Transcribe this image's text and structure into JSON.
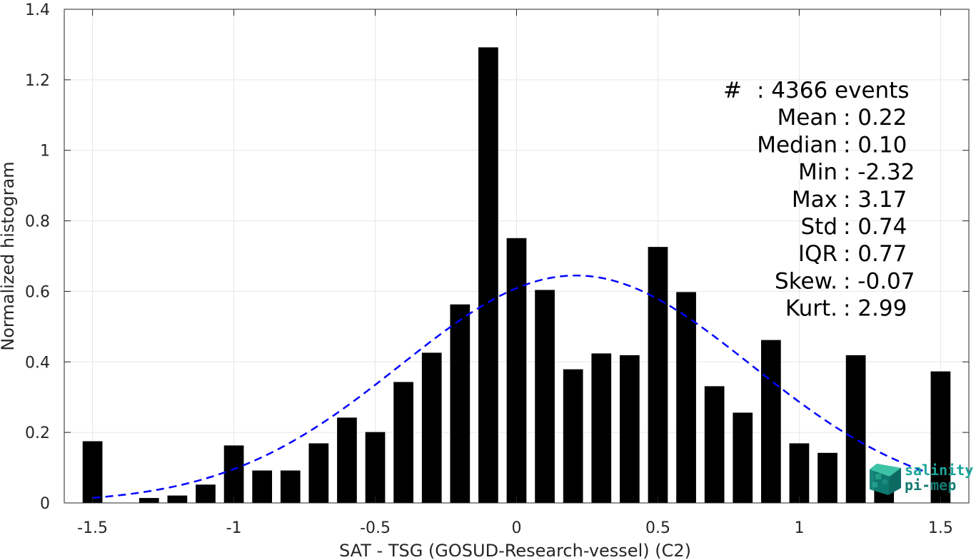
{
  "chart_data": {
    "type": "bar",
    "title": "",
    "xlabel": "SAT - TSG (GOSUD-Research-vessel) (C2)",
    "ylabel": "Normalized histogram",
    "xlim": [
      -1.6,
      1.6
    ],
    "ylim": [
      0,
      1.4
    ],
    "grid": true,
    "x_ticks": [
      -1.5,
      -1,
      -0.5,
      0,
      0.5,
      1,
      1.5
    ],
    "x_tick_labels": [
      "-1.5",
      "-1",
      "-0.5",
      "0",
      "0.5",
      "1",
      "1.5"
    ],
    "y_ticks": [
      0,
      0.2,
      0.4,
      0.6,
      0.8,
      1.0,
      1.2,
      1.4
    ],
    "y_tick_labels": [
      "0",
      "0.2",
      "0.4",
      "0.6",
      "0.8",
      "1",
      "1.2",
      "1.4"
    ],
    "bin_width": 0.1,
    "bar_width_fraction": 0.7,
    "x": [
      -1.5,
      -1.4,
      -1.3,
      -1.2,
      -1.1,
      -1.0,
      -0.9,
      -0.8,
      -0.7,
      -0.6,
      -0.5,
      -0.4,
      -0.3,
      -0.2,
      -0.1,
      0.0,
      0.1,
      0.2,
      0.3,
      0.4,
      0.5,
      0.6,
      0.7,
      0.8,
      0.9,
      1.0,
      1.1,
      1.2,
      1.3,
      1.4,
      1.5
    ],
    "values": [
      0.175,
      0.0,
      0.014,
      0.021,
      0.052,
      0.163,
      0.092,
      0.092,
      0.169,
      0.242,
      0.201,
      0.343,
      0.426,
      0.563,
      1.292,
      0.751,
      0.604,
      0.379,
      0.424,
      0.419,
      0.726,
      0.598,
      0.331,
      0.256,
      0.462,
      0.169,
      0.142,
      0.419,
      0.099,
      0.0,
      0.373
    ],
    "bar_color": "#000000",
    "fit": {
      "type": "gaussian",
      "mean": 0.21,
      "std": 0.62,
      "peak": 0.645,
      "x_range": [
        -1.5,
        1.45
      ],
      "color": "#0000ff",
      "style": "dashed"
    },
    "stats": [
      {
        "label": "#",
        "value": ": 4366 events"
      },
      {
        "label": "Mean",
        "value": ": 0.22"
      },
      {
        "label": "Median",
        "value": ": 0.10"
      },
      {
        "label": "Min",
        "value": ": -2.32"
      },
      {
        "label": "Max",
        "value": ": 3.17"
      },
      {
        "label": "Std",
        "value": ": 0.74"
      },
      {
        "label": "IQR",
        "value": ": 0.77"
      },
      {
        "label": "Skew.",
        "value": ": -0.07"
      },
      {
        "label": "Kurt.",
        "value": ": 2.99"
      }
    ]
  },
  "logo": {
    "line1": "salinity",
    "line2": "pi-mep",
    "color": "#1aa39a"
  }
}
